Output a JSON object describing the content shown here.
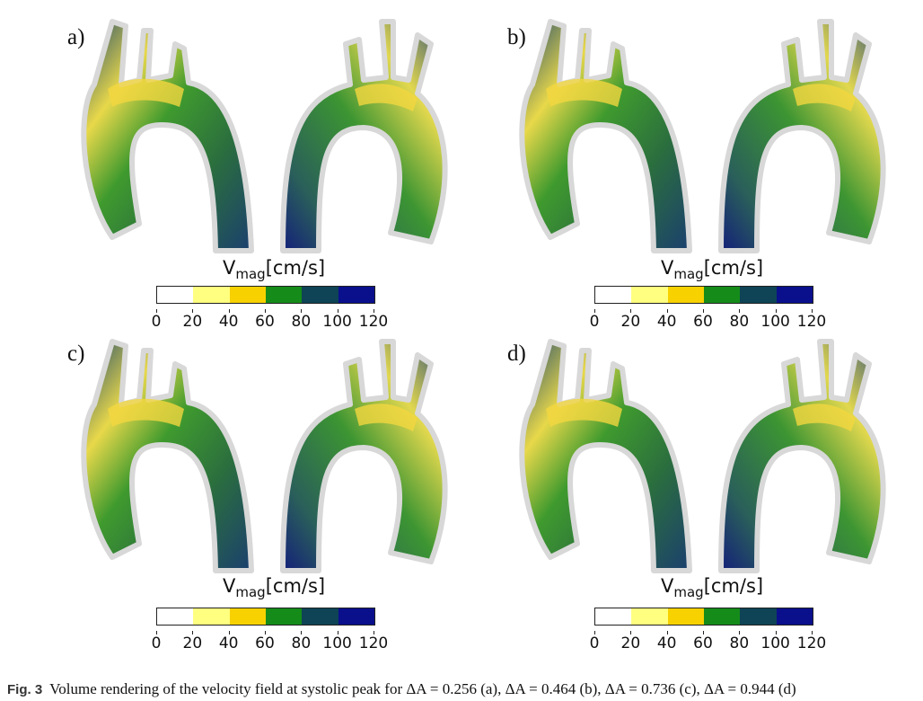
{
  "panels": [
    {
      "label": "a)"
    },
    {
      "label": "b)"
    },
    {
      "label": "c)"
    },
    {
      "label": "d)"
    }
  ],
  "colorbar": {
    "title_main": "V",
    "title_sub": "mag",
    "title_unit": "[cm/s]",
    "ticks": [
      "0",
      "20",
      "40",
      "60",
      "80",
      "100",
      "120"
    ],
    "colors": [
      "#ffffff",
      "#ffff80",
      "#f7d100",
      "#158c1a",
      "#0e4455",
      "#0a0f8c"
    ]
  },
  "caption": {
    "figno": "Fig. 3",
    "text": "Volume rendering of the velocity field at systolic peak for ΔA = 0.256 (a), ΔA = 0.464 (b), ΔA = 0.736 (c), ΔA = 0.944 (d)"
  }
}
